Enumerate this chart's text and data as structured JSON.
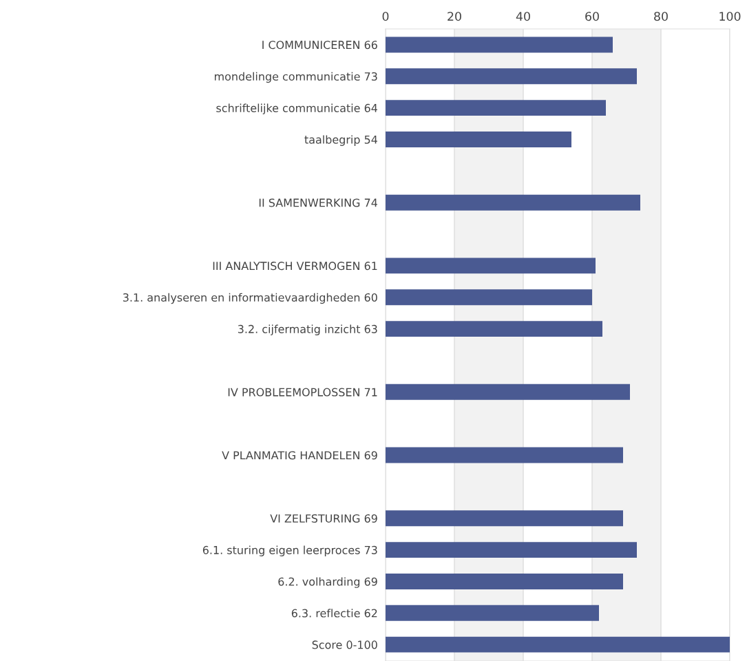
{
  "chart_data": {
    "type": "bar",
    "orientation": "horizontal",
    "categories": [
      "I COMMUNICEREN 66",
      "mondelinge communicatie 73",
      "schriftelijke communicatie 64",
      "taalbegrip 54",
      null,
      "II SAMENWERKING 74",
      null,
      "III ANALYTISCH VERMOGEN 61",
      "3.1. analyseren en informatievaardigheden 60",
      "3.2. cijfermatig inzicht 63",
      null,
      "IV PROBLEEMOPLOSSEN 71",
      null,
      "V PLANMATIG HANDELEN 69",
      null,
      "VI ZELFSTURING 69",
      "6.1. sturing eigen leerproces 73",
      "6.2. volharding 69",
      "6.3. reflectie 62",
      "Score 0-100"
    ],
    "values": [
      66,
      73,
      64,
      54,
      null,
      74,
      null,
      61,
      60,
      63,
      null,
      71,
      null,
      69,
      null,
      69,
      73,
      69,
      62,
      100
    ],
    "color": "#4a5a92",
    "xlim": [
      0,
      100
    ],
    "xticks": [
      0,
      20,
      40,
      60,
      80,
      100
    ],
    "bands": [
      {
        "axis": "x",
        "from": 20,
        "to": 40,
        "color": "#f2f2f2"
      },
      {
        "axis": "x",
        "from": 60,
        "to": 80,
        "color": "#f2f2f2"
      }
    ],
    "grid": "x"
  }
}
